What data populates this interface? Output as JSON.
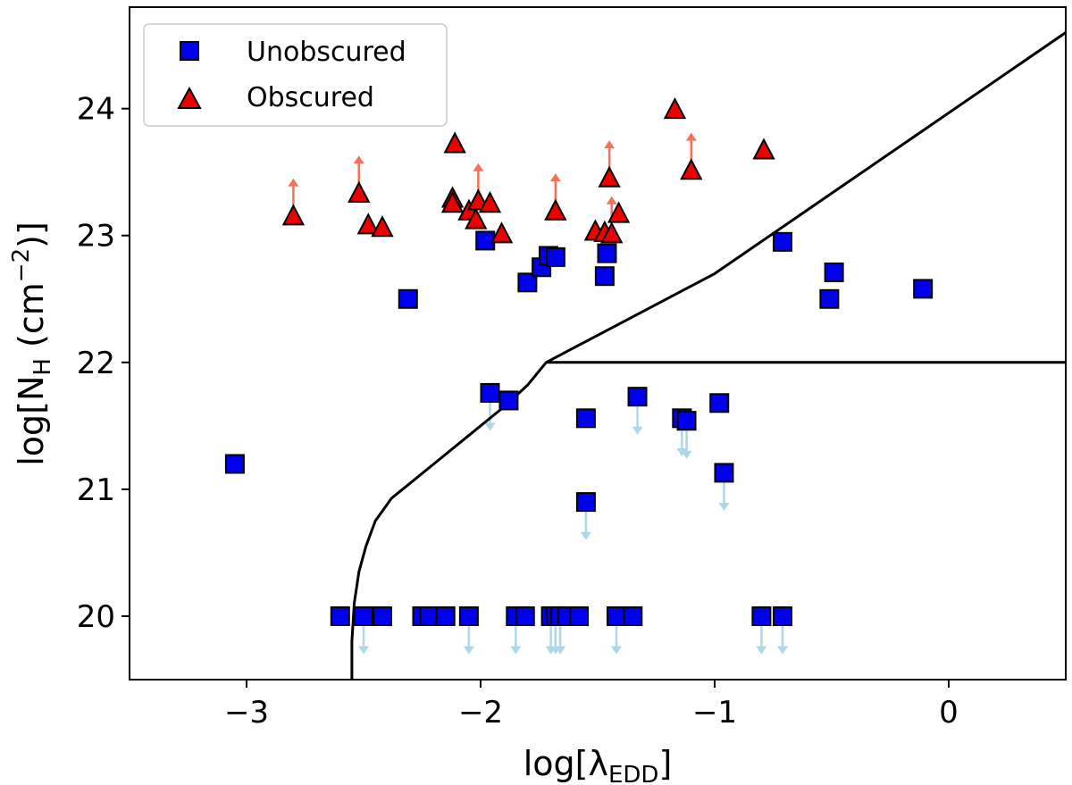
{
  "chart_data": {
    "type": "scatter",
    "xlim": [
      -3.5,
      0.5
    ],
    "ylim": [
      19.5,
      24.8
    ],
    "xticks": [
      -3,
      -2,
      -1,
      0
    ],
    "yticks": [
      20,
      21,
      22,
      23,
      24
    ],
    "xtick_labels": [
      "−3",
      "−2",
      "−1",
      "0"
    ],
    "ytick_labels": [
      "20",
      "21",
      "22",
      "23",
      "24"
    ],
    "xlabel": {
      "main": "log[λ",
      "sub": "EDD",
      "close": "]"
    },
    "ylabel": {
      "p1": "log[N",
      "sub": "H",
      "p2": " (cm",
      "sup": "−2",
      "p3": ")]"
    },
    "legend": {
      "position": "top-left",
      "entries": [
        "Unobscured",
        "Obscured"
      ]
    },
    "colors": {
      "unobscured": "#0000ee",
      "obscured": "#ee0000",
      "upper_arrow": "#add8e6",
      "lower_arrow": "#f4715a",
      "line": "#000000"
    },
    "series": [
      {
        "name": "Unobscured",
        "marker": "square",
        "points": [
          {
            "x": -3.05,
            "y": 21.2
          },
          {
            "x": -2.31,
            "y": 22.5
          },
          {
            "x": -1.98,
            "y": 22.96
          },
          {
            "x": -1.96,
            "y": 21.76,
            "upper_limit": true
          },
          {
            "x": -1.8,
            "y": 22.63
          },
          {
            "x": -1.74,
            "y": 22.75
          },
          {
            "x": -1.71,
            "y": 22.84
          },
          {
            "x": -1.68,
            "y": 22.83
          },
          {
            "x": -1.88,
            "y": 21.7
          },
          {
            "x": -1.47,
            "y": 22.68
          },
          {
            "x": -1.46,
            "y": 22.86
          },
          {
            "x": -1.55,
            "y": 21.56
          },
          {
            "x": -1.55,
            "y": 20.9,
            "upper_limit": true
          },
          {
            "x": -1.33,
            "y": 21.73,
            "upper_limit": true
          },
          {
            "x": -1.14,
            "y": 21.56,
            "upper_limit": true
          },
          {
            "x": -1.12,
            "y": 21.54,
            "upper_limit": true
          },
          {
            "x": -0.98,
            "y": 21.68
          },
          {
            "x": -0.96,
            "y": 21.13,
            "upper_limit": true
          },
          {
            "x": -0.71,
            "y": 22.95
          },
          {
            "x": -0.51,
            "y": 22.5
          },
          {
            "x": -0.49,
            "y": 22.71
          },
          {
            "x": -0.11,
            "y": 22.58
          },
          {
            "x": -2.6,
            "y": 20.0
          },
          {
            "x": -2.5,
            "y": 20.0,
            "upper_limit": true
          },
          {
            "x": -2.42,
            "y": 20.0
          },
          {
            "x": -2.25,
            "y": 20.0
          },
          {
            "x": -2.22,
            "y": 20.0
          },
          {
            "x": -2.15,
            "y": 20.0
          },
          {
            "x": -2.05,
            "y": 20.0,
            "upper_limit": true
          },
          {
            "x": -1.85,
            "y": 20.0,
            "upper_limit": true
          },
          {
            "x": -1.81,
            "y": 20.0
          },
          {
            "x": -1.7,
            "y": 20.0,
            "upper_limit": true
          },
          {
            "x": -1.68,
            "y": 20.0,
            "upper_limit": true
          },
          {
            "x": -1.66,
            "y": 20.0,
            "upper_limit": true
          },
          {
            "x": -1.63,
            "y": 20.0
          },
          {
            "x": -1.58,
            "y": 20.0
          },
          {
            "x": -1.42,
            "y": 20.0,
            "upper_limit": true
          },
          {
            "x": -1.35,
            "y": 20.0
          },
          {
            "x": -0.8,
            "y": 20.0,
            "upper_limit": true
          },
          {
            "x": -0.71,
            "y": 20.0,
            "upper_limit": true
          }
        ]
      },
      {
        "name": "Obscured",
        "marker": "triangle",
        "points": [
          {
            "x": -2.8,
            "y": 23.15,
            "lower_limit": true
          },
          {
            "x": -2.52,
            "y": 23.33,
            "lower_limit": true
          },
          {
            "x": -2.48,
            "y": 23.08
          },
          {
            "x": -2.42,
            "y": 23.06
          },
          {
            "x": -2.11,
            "y": 23.72
          },
          {
            "x": -2.12,
            "y": 23.29
          },
          {
            "x": -2.12,
            "y": 23.25
          },
          {
            "x": -2.05,
            "y": 23.19
          },
          {
            "x": -2.01,
            "y": 23.27,
            "lower_limit": true
          },
          {
            "x": -2.02,
            "y": 23.12
          },
          {
            "x": -1.96,
            "y": 23.25
          },
          {
            "x": -1.91,
            "y": 23.01
          },
          {
            "x": -1.68,
            "y": 23.19,
            "lower_limit": true
          },
          {
            "x": -1.51,
            "y": 23.03
          },
          {
            "x": -1.47,
            "y": 23.02
          },
          {
            "x": -1.45,
            "y": 23.45,
            "lower_limit": true
          },
          {
            "x": -1.44,
            "y": 23.01,
            "lower_limit": true
          },
          {
            "x": -1.41,
            "y": 23.17
          },
          {
            "x": -1.17,
            "y": 23.99
          },
          {
            "x": -1.1,
            "y": 23.51,
            "lower_limit": true
          },
          {
            "x": -0.79,
            "y": 23.67
          }
        ]
      }
    ],
    "curves": [
      {
        "name": "boundary-curve",
        "points": [
          [
            -2.55,
            19.5
          ],
          [
            -2.55,
            19.8
          ],
          [
            -2.54,
            20.1
          ],
          [
            -2.52,
            20.35
          ],
          [
            -2.49,
            20.55
          ],
          [
            -2.45,
            20.75
          ],
          [
            -2.38,
            20.93
          ],
          [
            -2.3,
            21.05
          ],
          [
            -2.2,
            21.2
          ],
          [
            -2.1,
            21.35
          ],
          [
            -2.0,
            21.5
          ],
          [
            -1.9,
            21.65
          ],
          [
            -1.8,
            21.82
          ],
          [
            -1.72,
            22.0
          ],
          [
            -1.0,
            22.7
          ],
          [
            0.5,
            24.6
          ]
        ]
      },
      {
        "name": "horizontal-line",
        "points": [
          [
            -1.72,
            22.0
          ],
          [
            0.5,
            22.0
          ]
        ]
      }
    ]
  }
}
